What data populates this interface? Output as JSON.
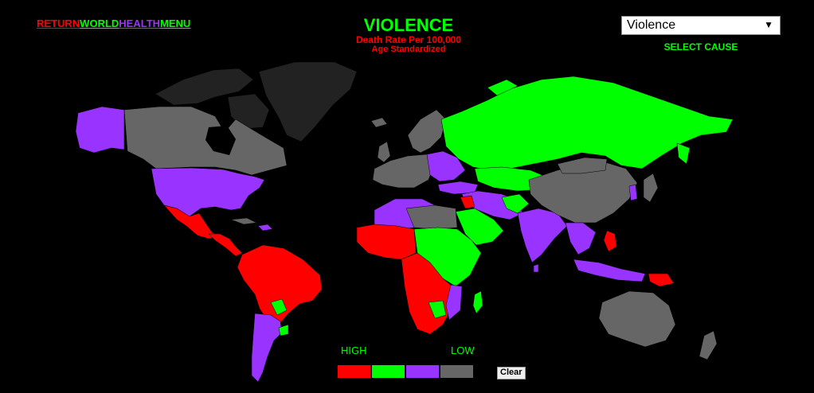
{
  "colors": {
    "high": "#ff0000",
    "mid_high": "#00ff00",
    "mid_low": "#9933ff",
    "low": "#666666",
    "no_data": "#222222",
    "title": "#00ff00",
    "subtitle": "#ff0000",
    "caption": "#00ff00"
  },
  "nav": {
    "return": "RETURN",
    "world": "WORLD",
    "health": "HEALTH",
    "menu": "MENU"
  },
  "header": {
    "title": "VIOLENCE",
    "subtitle": "Death Rate Per 100,000",
    "subsubtitle": "Age Standardized"
  },
  "cause_select": {
    "value": "Violence",
    "caption": "SELECT CAUSE"
  },
  "legend": {
    "high_label": "HIGH",
    "low_label": "LOW",
    "clear_label": "Clear"
  }
}
